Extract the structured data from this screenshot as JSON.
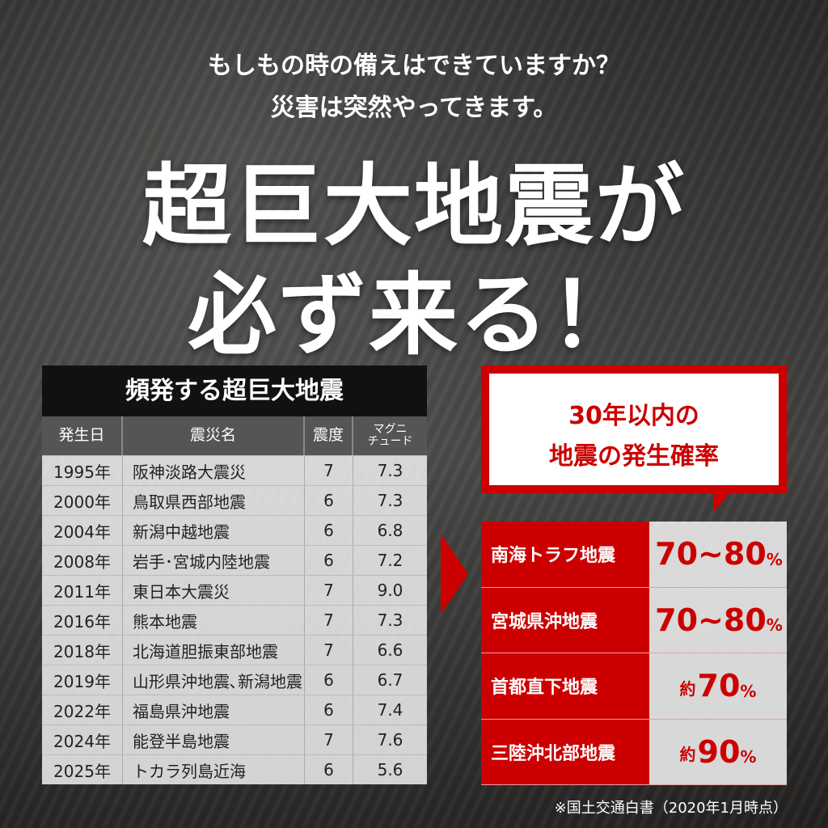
{
  "headline": {
    "line1": "もしもの時の備えはできていますか？",
    "line2": "災害は突然やってきます。",
    "big1": "超巨大地震が",
    "big2": "必ず来る！"
  },
  "table": {
    "title": "頻発する超巨大地震",
    "headers": [
      "発生日",
      "震災名",
      "震度",
      "マグニ\nチュード"
    ],
    "rows": [
      [
        "1995年",
        "阪神淡路大震災",
        "7",
        "7.3"
      ],
      [
        "2000年",
        "鳥取県西部地震",
        "6",
        "7.3"
      ],
      [
        "2004年",
        "新潟中越地震",
        "6",
        "6.8"
      ],
      [
        "2008年",
        "岩手･宮城内陸地震",
        "6",
        "7.2"
      ],
      [
        "2011年",
        "東日本大震災",
        "7",
        "9.0"
      ],
      [
        "2016年",
        "熊本地震",
        "7",
        "7.3"
      ],
      [
        "2018年",
        "北海道胆振東部地震",
        "7",
        "6.6"
      ],
      [
        "2019年",
        "山形県沖地震､新潟地震",
        "6",
        "6.7"
      ],
      [
        "2022年",
        "福島県沖地震",
        "6",
        "7.4"
      ],
      [
        "2024年",
        "能登半島地震",
        "7",
        "7.6"
      ],
      [
        "2025年",
        "トカラ列島近海",
        "6",
        "5.6"
      ]
    ]
  },
  "probability": {
    "title1": "30年以内の",
    "title2": "地震の発生確率",
    "items": [
      {
        "name": "南海トラフ地震",
        "prefix": "",
        "value": "70~80",
        "unit": "%"
      },
      {
        "name": "宮城県沖地震",
        "prefix": "",
        "value": "70~80",
        "unit": "%"
      },
      {
        "name": "首都直下地震",
        "prefix": "約",
        "value": "70",
        "unit": "%"
      },
      {
        "name": "三陸沖北部地震",
        "prefix": "約",
        "value": "90",
        "unit": "%"
      }
    ]
  },
  "footnote": "※国土交通白書（2020年1月時点）",
  "colors": {
    "accent": "#cc0000",
    "table_title_bg": "#111111",
    "header_bg": "#555555"
  }
}
